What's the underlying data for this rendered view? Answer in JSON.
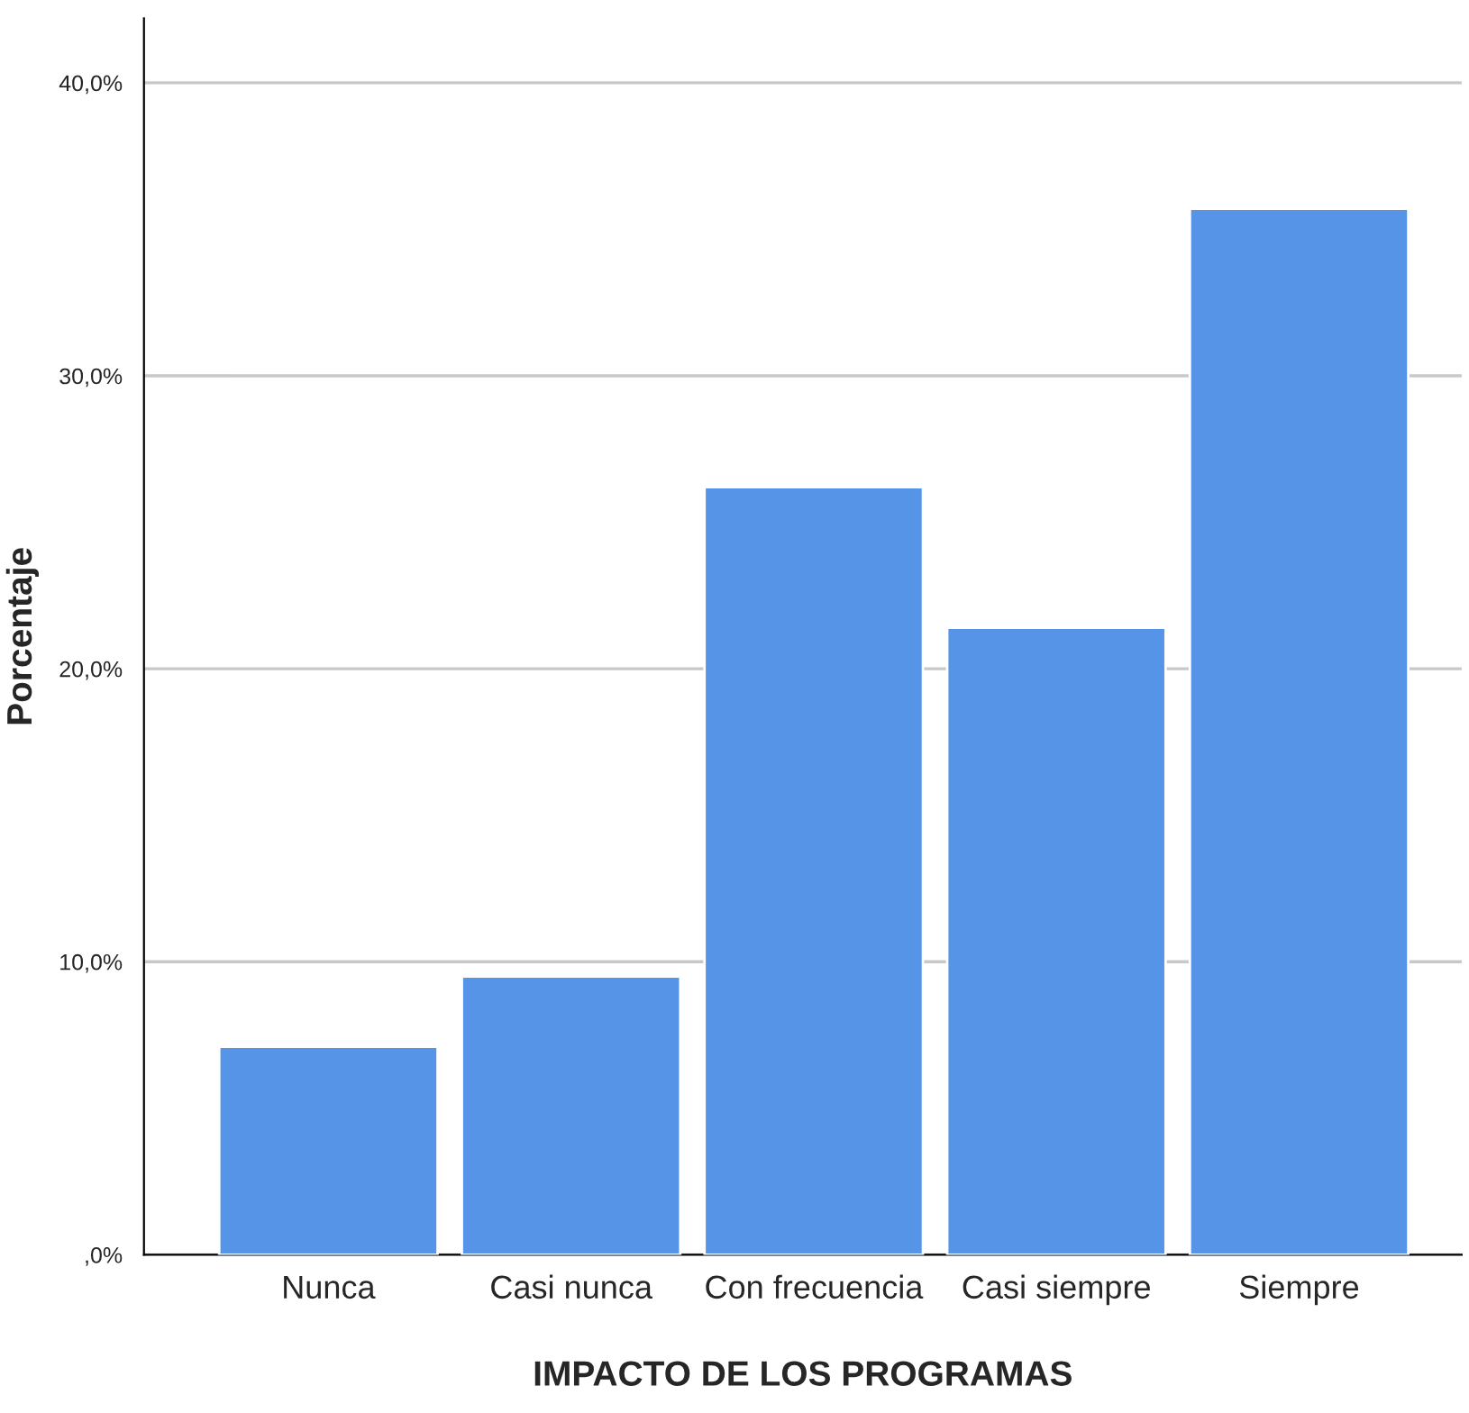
{
  "chart_data": {
    "type": "bar",
    "xlabel": "IMPACTO DE LOS PROGRAMAS",
    "ylabel": "Porcentaje",
    "categories": [
      "Nunca",
      "Casi nunca",
      "Con frecuencia",
      "Casi siempre",
      "Siempre"
    ],
    "values": [
      7.1,
      9.5,
      26.2,
      21.4,
      35.7
    ],
    "color": "#5594e6",
    "ylim": [
      0,
      42.2
    ],
    "yticks": [
      {
        "value": 0,
        "label": ",0%"
      },
      {
        "value": 10,
        "label": "10,0%"
      },
      {
        "value": 20,
        "label": "20,0%"
      },
      {
        "value": 30,
        "label": "30,0%"
      },
      {
        "value": 40,
        "label": "40,0%"
      }
    ],
    "grid": "y",
    "legend": false
  }
}
